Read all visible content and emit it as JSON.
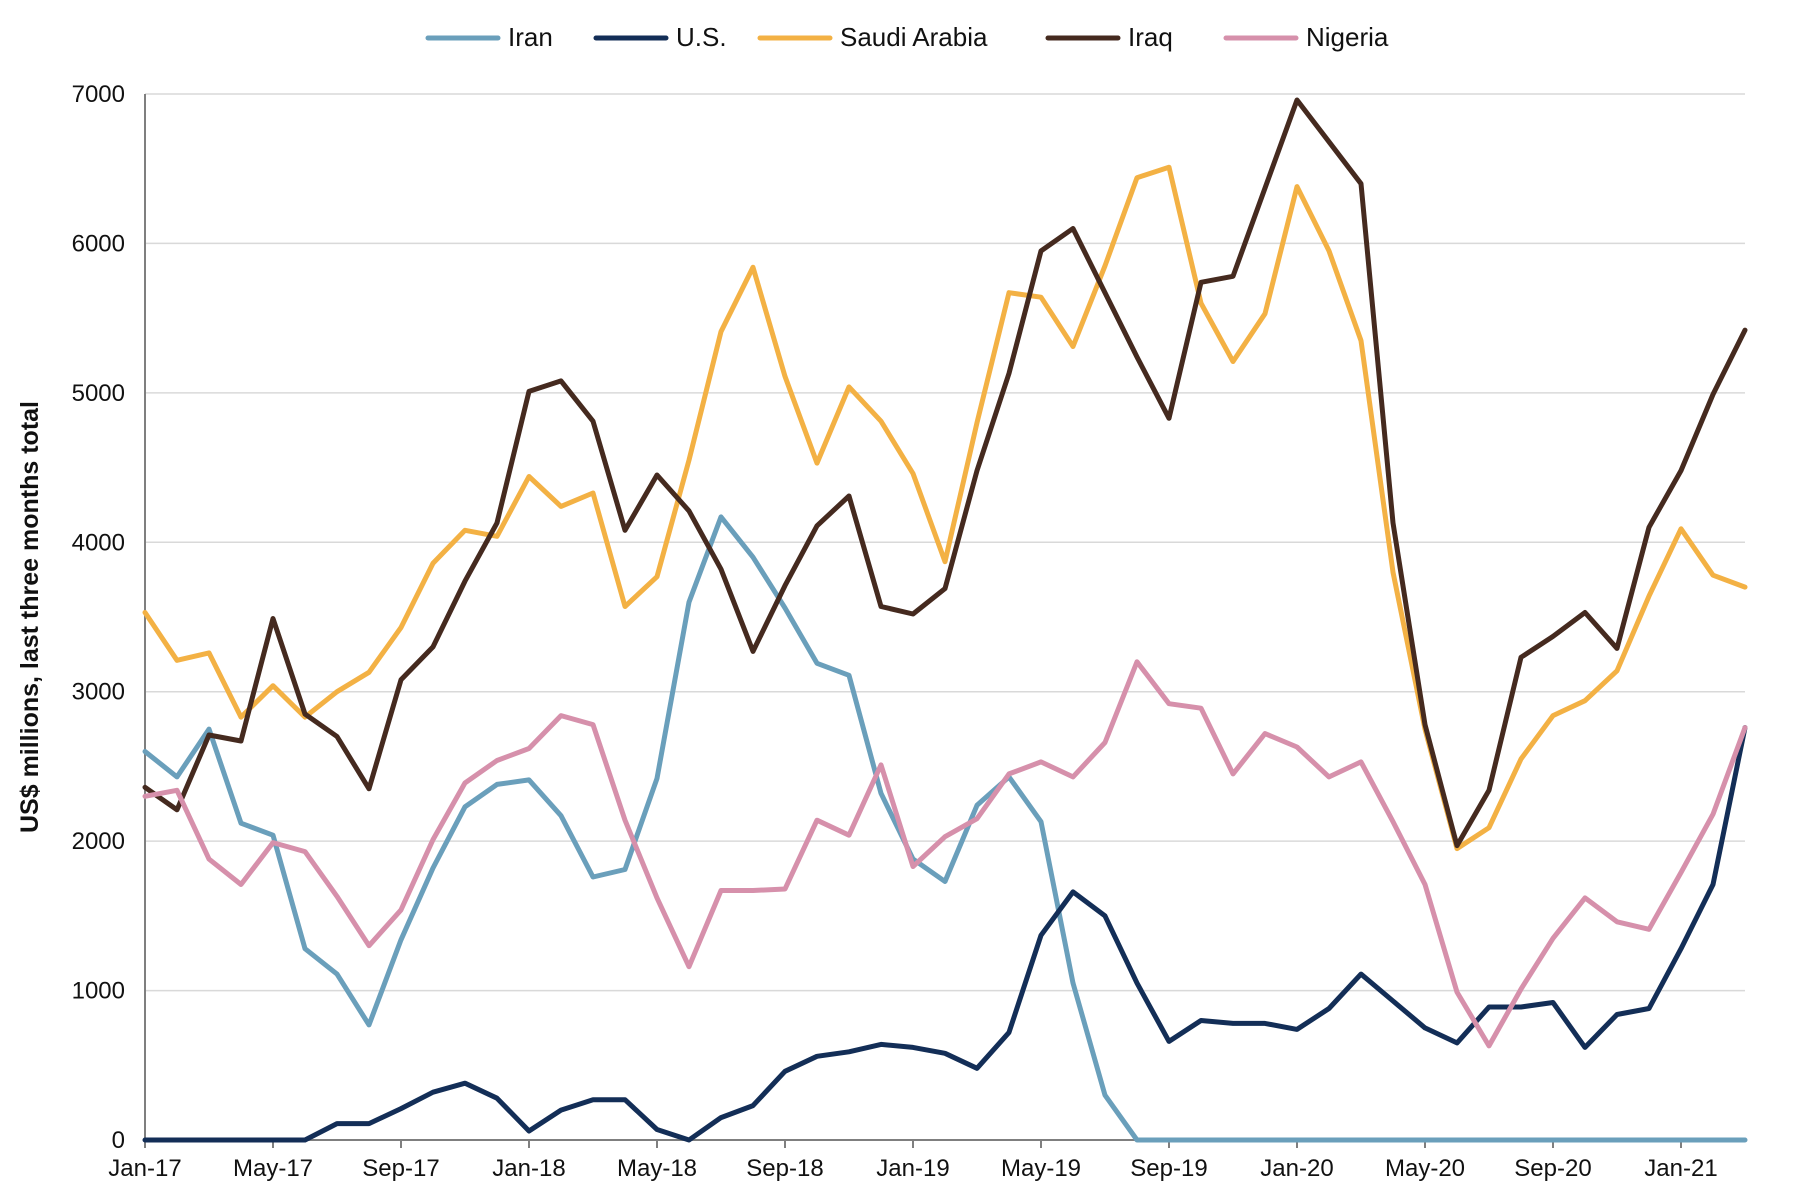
{
  "chart_data": {
    "type": "line",
    "title": "",
    "xlabel": "",
    "ylabel": "US$ millions, last three months total",
    "ylim": [
      0,
      7000
    ],
    "yticks": [
      "0",
      "1000",
      "2000",
      "3000",
      "4000",
      "5000",
      "6000",
      "7000"
    ],
    "xtick_labels": [
      "Jan-17",
      "May-17",
      "Sep-17",
      "Jan-18",
      "May-18",
      "Sep-18",
      "Jan-19",
      "May-19",
      "Sep-19",
      "Jan-20",
      "May-20",
      "Sep-20",
      "Jan-21"
    ],
    "grid": true,
    "legend_position": "top",
    "x": [
      "Jan-17",
      "Feb-17",
      "Mar-17",
      "Apr-17",
      "May-17",
      "Jun-17",
      "Jul-17",
      "Aug-17",
      "Sep-17",
      "Oct-17",
      "Nov-17",
      "Dec-17",
      "Jan-18",
      "Feb-18",
      "Mar-18",
      "Apr-18",
      "May-18",
      "Jun-18",
      "Jul-18",
      "Aug-18",
      "Sep-18",
      "Oct-18",
      "Nov-18",
      "Dec-18",
      "Jan-19",
      "Feb-19",
      "Mar-19",
      "Apr-19",
      "May-19",
      "Jun-19",
      "Jul-19",
      "Aug-19",
      "Sep-19",
      "Oct-19",
      "Nov-19",
      "Dec-19",
      "Jan-20",
      "Feb-20",
      "Mar-20",
      "Apr-20",
      "May-20",
      "Jun-20",
      "Jul-20",
      "Aug-20",
      "Sep-20",
      "Oct-20",
      "Nov-20",
      "Dec-20",
      "Jan-21",
      "Feb-21",
      "Mar-21"
    ],
    "series": [
      {
        "name": "Iran",
        "color": "#6a9fbb",
        "values": [
          2600,
          2430,
          2750,
          2120,
          2040,
          1280,
          1110,
          770,
          1340,
          1820,
          2230,
          2380,
          2410,
          2170,
          1760,
          1810,
          2420,
          3600,
          4170,
          3900,
          3560,
          3190,
          3110,
          2320,
          1880,
          1730,
          2240,
          2430,
          2130,
          1050,
          300,
          0,
          0,
          0,
          0,
          0,
          0,
          0,
          0,
          0,
          0,
          0,
          0,
          0,
          0,
          0,
          0,
          0,
          0,
          0,
          0
        ]
      },
      {
        "name": "U.S.",
        "color": "#132e57",
        "values": [
          0,
          0,
          0,
          0,
          0,
          0,
          110,
          110,
          210,
          320,
          380,
          280,
          60,
          200,
          270,
          270,
          70,
          0,
          150,
          230,
          460,
          560,
          590,
          640,
          620,
          580,
          480,
          720,
          1370,
          1660,
          1500,
          1050,
          660,
          800,
          780,
          780,
          740,
          880,
          1110,
          930,
          750,
          650,
          890,
          890,
          920,
          620,
          840,
          880,
          1280,
          1710,
          2760
        ]
      },
      {
        "name": "Saudi Arabia",
        "color": "#f3b144",
        "values": [
          3530,
          3210,
          3260,
          2830,
          3040,
          2830,
          3000,
          3130,
          3430,
          3860,
          4080,
          4040,
          4440,
          4240,
          4330,
          3570,
          3770,
          4550,
          5410,
          5840,
          5110,
          4530,
          5040,
          4810,
          4460,
          3870,
          4800,
          5670,
          5640,
          5310,
          5850,
          6440,
          6510,
          5600,
          5210,
          5530,
          6380,
          5950,
          5350,
          3800,
          2750,
          1950,
          2090,
          2550,
          2840,
          2940,
          3140,
          3640,
          4090,
          3780,
          3700
        ]
      },
      {
        "name": "Iraq",
        "color": "#452a1f",
        "values": [
          2360,
          2210,
          2710,
          2670,
          3490,
          2850,
          2700,
          2350,
          3080,
          3300,
          3740,
          4130,
          5010,
          5080,
          4810,
          4080,
          4450,
          4210,
          3820,
          3270,
          3710,
          4110,
          4310,
          3570,
          3520,
          3690,
          4480,
          5130,
          5950,
          6100,
          5670,
          5240,
          4830,
          5740,
          5780,
          6370,
          6960,
          6680,
          6400,
          4130,
          2780,
          1970,
          2340,
          3230,
          3370,
          3530,
          3290,
          4100,
          4480,
          4990,
          5420
        ]
      },
      {
        "name": "Nigeria",
        "color": "#d690ab",
        "values": [
          2300,
          2340,
          1880,
          1710,
          1990,
          1930,
          1630,
          1300,
          1540,
          2010,
          2390,
          2540,
          2620,
          2840,
          2780,
          2140,
          1620,
          1160,
          1670,
          1670,
          1680,
          2140,
          2040,
          2510,
          1830,
          2030,
          2150,
          2450,
          2530,
          2430,
          2660,
          3200,
          2920,
          2890,
          2450,
          2720,
          2630,
          2430,
          2530,
          2130,
          1710,
          990,
          630,
          1010,
          1350,
          1620,
          1460,
          1410,
          1790,
          2180,
          2760
        ]
      }
    ]
  }
}
